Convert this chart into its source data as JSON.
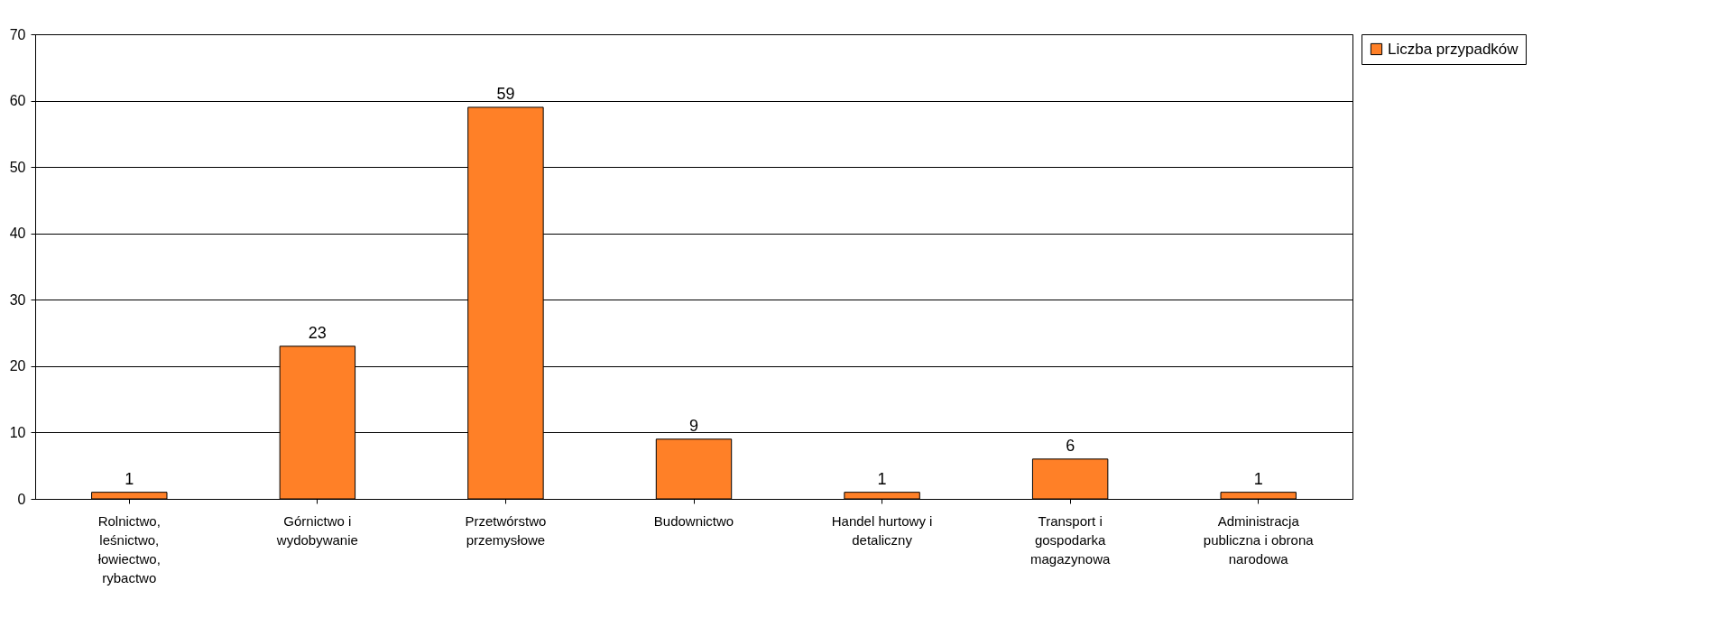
{
  "chart_data": {
    "type": "bar",
    "categories": [
      "Rolnictwo, leśnictwo, łowiectwo, rybactwo",
      "Górnictwo i wydobywanie",
      "Przetwórstwo przemysłowe",
      "Budownictwo",
      "Handel hurtowy i detaliczny",
      "Transport i gospodarka magazynowa",
      "Administracja publiczna i obrona narodowa"
    ],
    "series": [
      {
        "name": "Liczba przypadków",
        "color": "#ff8027",
        "values": [
          1,
          23,
          59,
          9,
          1,
          6,
          1
        ]
      }
    ],
    "ylim": [
      0,
      70
    ],
    "yticks": [
      0,
      10,
      20,
      30,
      40,
      50,
      60,
      70
    ],
    "grid": "y",
    "legend": "right",
    "data_labels": true
  }
}
